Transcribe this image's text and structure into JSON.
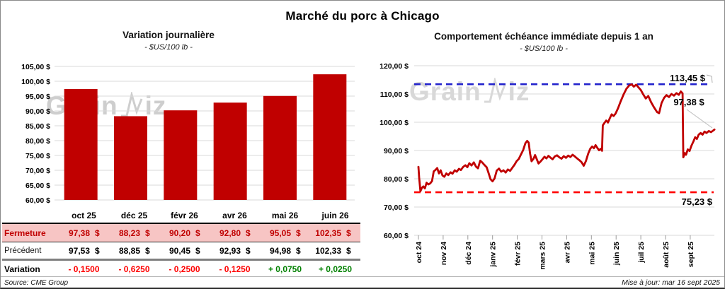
{
  "page": {
    "title": "Marché du porc à Chicago",
    "source": "Source: CME Group",
    "updated": "Mise à jour: mar 16 sept 2025",
    "watermark_prefix": "Grain",
    "watermark_suffix": "iz"
  },
  "colors": {
    "bar": "#C00000",
    "line": "#C00000",
    "high_line": "#2222CC",
    "low_line": "#FF0000",
    "negative": "#FF0000",
    "positive": "#008000",
    "fermeture_bg": "#F7C5C4",
    "fermeture_text": "#C00000",
    "grid": "#D9D9D9",
    "leader": "#BBBBBB"
  },
  "table": {
    "header": [
      "",
      "oct 25",
      "déc 25",
      "févr 26",
      "avr 26",
      "mai 26",
      "juin 26"
    ],
    "currency": "$",
    "rows": [
      {
        "label": "Fermeture",
        "style": "ferm",
        "values": [
          "97,38",
          "88,23",
          "90,20",
          "92,80",
          "95,05",
          "102,35"
        ]
      },
      {
        "label": "Précédent",
        "style": "prec",
        "values": [
          "97,53",
          "88,85",
          "90,45",
          "92,93",
          "94,98",
          "102,33"
        ]
      },
      {
        "label": "Variation",
        "style": "vari",
        "values": [
          "- 0,1500",
          "- 0,6250",
          "- 0,2500",
          "- 0,1250",
          "+ 0,0750",
          "+ 0,0250"
        ],
        "signs": [
          "neg",
          "neg",
          "neg",
          "neg",
          "pos",
          "pos"
        ]
      }
    ]
  },
  "chart_data": [
    {
      "type": "bar",
      "title": "Variation journalière",
      "subtitle": "- $US/100 lb -",
      "categories": [
        "oct 25",
        "déc 25",
        "févr 26",
        "avr 26",
        "mai 26",
        "juin 26"
      ],
      "values": [
        97.38,
        88.23,
        90.2,
        92.8,
        95.05,
        102.35
      ],
      "ylim": [
        60,
        105
      ],
      "ytick_step": 5,
      "ytick_labels": [
        "105,00 $",
        "100,00 $",
        "95,00 $",
        "90,00 $",
        "85,00 $",
        "80,00 $",
        "75,00 $",
        "70,00 $",
        "65,00 $",
        "60,00 $"
      ],
      "grid": true,
      "legend": "none"
    },
    {
      "type": "line",
      "title": "Comportement échéance immédiate depuis 1 an",
      "subtitle": "- $US/100 lb -",
      "x_categories": [
        "oct 24",
        "nov 24",
        "déc 24",
        "janv 25",
        "févr 25",
        "mars 25",
        "avr 25",
        "mai 25",
        "juin 25",
        "juil 25",
        "août 25",
        "sept 25"
      ],
      "ylim": [
        60,
        120
      ],
      "ytick_step": 10,
      "ytick_labels": [
        "120,00 $",
        "110,00 $",
        "100,00 $",
        "90,00 $",
        "80,00 $",
        "70,00 $",
        "60,00 $"
      ],
      "grid": true,
      "high_line": {
        "value": 113.45,
        "label": "113,45 $"
      },
      "low_line": {
        "value": 75.23,
        "label": "75,23 $"
      },
      "last_point": {
        "value": 97.38,
        "label": "97,38 $"
      },
      "points": [
        [
          0.0,
          84.2
        ],
        [
          0.03,
          80.5
        ],
        [
          0.08,
          75.6
        ],
        [
          0.14,
          76.8
        ],
        [
          0.2,
          77.3
        ],
        [
          0.26,
          76.6
        ],
        [
          0.33,
          78.6
        ],
        [
          0.4,
          78.0
        ],
        [
          0.48,
          78.4
        ],
        [
          0.55,
          79.2
        ],
        [
          0.62,
          82.6
        ],
        [
          0.7,
          83.2
        ],
        [
          0.76,
          83.8
        ],
        [
          0.83,
          81.9
        ],
        [
          0.9,
          83.0
        ],
        [
          0.97,
          81.2
        ],
        [
          1.05,
          80.7
        ],
        [
          1.13,
          81.9
        ],
        [
          1.21,
          81.3
        ],
        [
          1.3,
          82.3
        ],
        [
          1.38,
          81.8
        ],
        [
          1.47,
          83.0
        ],
        [
          1.55,
          82.5
        ],
        [
          1.64,
          83.5
        ],
        [
          1.72,
          83.1
        ],
        [
          1.81,
          84.2
        ],
        [
          1.9,
          84.8
        ],
        [
          1.98,
          84.1
        ],
        [
          2.06,
          85.5
        ],
        [
          2.15,
          84.7
        ],
        [
          2.24,
          85.8
        ],
        [
          2.33,
          84.3
        ],
        [
          2.41,
          83.7
        ],
        [
          2.5,
          86.4
        ],
        [
          2.58,
          85.8
        ],
        [
          2.67,
          84.9
        ],
        [
          2.76,
          84.1
        ],
        [
          2.84,
          82.0
        ],
        [
          2.92,
          79.8
        ],
        [
          3.0,
          79.1
        ],
        [
          3.08,
          80.1
        ],
        [
          3.17,
          82.9
        ],
        [
          3.26,
          83.6
        ],
        [
          3.35,
          82.5
        ],
        [
          3.44,
          83.0
        ],
        [
          3.53,
          82.2
        ],
        [
          3.62,
          83.3
        ],
        [
          3.71,
          82.8
        ],
        [
          3.8,
          83.9
        ],
        [
          3.89,
          85.0
        ],
        [
          3.97,
          86.2
        ],
        [
          4.06,
          87.0
        ],
        [
          4.15,
          88.6
        ],
        [
          4.24,
          90.2
        ],
        [
          4.33,
          92.6
        ],
        [
          4.4,
          93.4
        ],
        [
          4.46,
          92.8
        ],
        [
          4.52,
          88.9
        ],
        [
          4.58,
          86.2
        ],
        [
          4.66,
          87.1
        ],
        [
          4.72,
          88.4
        ],
        [
          4.79,
          86.9
        ],
        [
          4.86,
          85.4
        ],
        [
          4.94,
          86.1
        ],
        [
          5.02,
          86.9
        ],
        [
          5.1,
          87.8
        ],
        [
          5.18,
          87.2
        ],
        [
          5.26,
          88.1
        ],
        [
          5.34,
          87.5
        ],
        [
          5.43,
          86.9
        ],
        [
          5.52,
          87.9
        ],
        [
          5.61,
          88.3
        ],
        [
          5.7,
          87.6
        ],
        [
          5.79,
          87.1
        ],
        [
          5.88,
          88.0
        ],
        [
          5.97,
          87.4
        ],
        [
          6.06,
          88.2
        ],
        [
          6.15,
          87.7
        ],
        [
          6.24,
          88.5
        ],
        [
          6.33,
          87.9
        ],
        [
          6.42,
          87.2
        ],
        [
          6.51,
          86.6
        ],
        [
          6.6,
          85.9
        ],
        [
          6.69,
          84.6
        ],
        [
          6.78,
          86.3
        ],
        [
          6.87,
          88.9
        ],
        [
          6.95,
          90.6
        ],
        [
          7.03,
          91.4
        ],
        [
          7.1,
          90.8
        ],
        [
          7.17,
          91.9
        ],
        [
          7.24,
          90.9
        ],
        [
          7.31,
          90.1
        ],
        [
          7.38,
          90.6
        ],
        [
          7.43,
          89.9
        ],
        [
          7.46,
          98.9
        ],
        [
          7.53,
          99.8
        ],
        [
          7.6,
          100.6
        ],
        [
          7.67,
          99.9
        ],
        [
          7.74,
          101.3
        ],
        [
          7.82,
          102.8
        ],
        [
          7.9,
          102.2
        ],
        [
          7.98,
          103.1
        ],
        [
          8.08,
          105.0
        ],
        [
          8.18,
          107.3
        ],
        [
          8.3,
          109.8
        ],
        [
          8.42,
          111.9
        ],
        [
          8.53,
          113.0
        ],
        [
          8.63,
          113.4
        ],
        [
          8.72,
          112.6
        ],
        [
          8.81,
          113.3
        ],
        [
          8.9,
          112.4
        ],
        [
          9.0,
          111.4
        ],
        [
          9.1,
          109.8
        ],
        [
          9.2,
          108.4
        ],
        [
          9.3,
          109.3
        ],
        [
          9.42,
          107.0
        ],
        [
          9.54,
          105.2
        ],
        [
          9.66,
          103.6
        ],
        [
          9.74,
          103.2
        ],
        [
          9.84,
          106.8
        ],
        [
          9.94,
          108.6
        ],
        [
          10.04,
          109.6
        ],
        [
          10.14,
          108.9
        ],
        [
          10.24,
          110.0
        ],
        [
          10.34,
          109.4
        ],
        [
          10.44,
          110.3
        ],
        [
          10.54,
          109.7
        ],
        [
          10.62,
          110.9
        ],
        [
          10.69,
          110.2
        ],
        [
          10.72,
          87.6
        ],
        [
          10.78,
          89.1
        ],
        [
          10.83,
          88.5
        ],
        [
          10.9,
          90.4
        ],
        [
          10.97,
          89.8
        ],
        [
          11.05,
          91.7
        ],
        [
          11.13,
          93.2
        ],
        [
          11.2,
          94.7
        ],
        [
          11.27,
          94.1
        ],
        [
          11.34,
          95.6
        ],
        [
          11.42,
          96.2
        ],
        [
          11.5,
          95.6
        ],
        [
          11.58,
          96.7
        ],
        [
          11.66,
          96.2
        ],
        [
          11.75,
          96.9
        ],
        [
          11.84,
          96.5
        ],
        [
          11.92,
          97.0
        ],
        [
          11.98,
          97.4
        ]
      ]
    }
  ]
}
